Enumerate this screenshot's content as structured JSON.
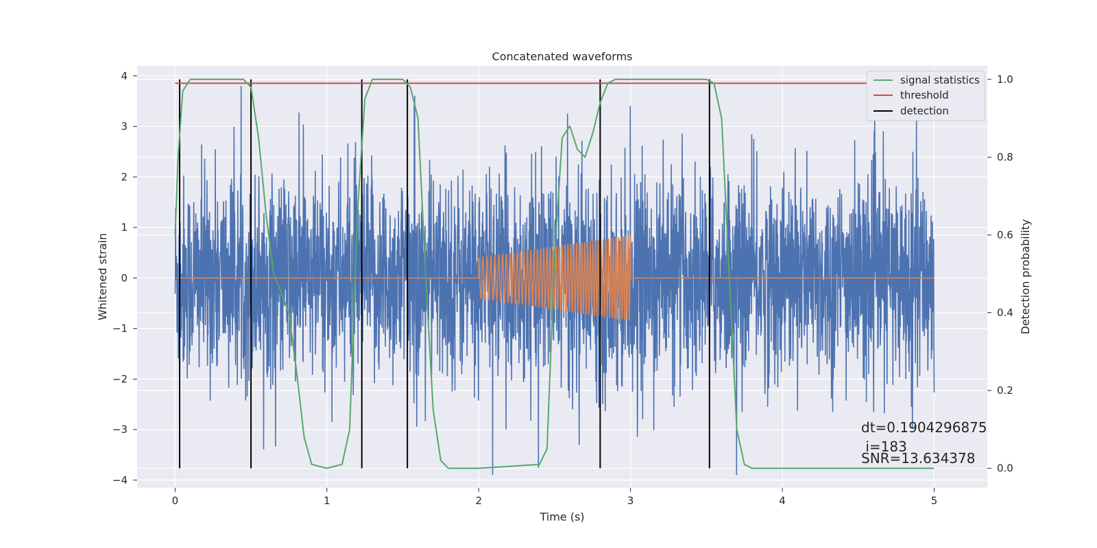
{
  "chart_data": {
    "type": "line",
    "title": "Concatenated waveforms",
    "xlabel": "Time (s)",
    "ylabel": "Whitened strain",
    "y2label": "Detection probability",
    "xlim": [
      -0.25,
      5.35
    ],
    "ylim": [
      -4.15,
      4.2
    ],
    "y2lim": [
      -0.05,
      1.035
    ],
    "x_ticks": [
      0,
      1,
      2,
      3,
      4,
      5
    ],
    "y_ticks": [
      -4,
      -3,
      -2,
      -1,
      0,
      1,
      2,
      3,
      4
    ],
    "y2_ticks": [
      0.0,
      0.2,
      0.4,
      0.6,
      0.8,
      1.0
    ],
    "grid": true,
    "legend_position": "top-right",
    "colors": {
      "noise": "#4c72b0",
      "injection": "#dd8452",
      "signal_statistics": "#55a868",
      "threshold": "#c44e52",
      "detection": "#000000",
      "plot_bg": "#eaeaf2"
    },
    "series": [
      {
        "name": "",
        "axis": "left",
        "description_values": "whitened noisy strain, approx. Gaussian noise (std ~1) over 0-5 s with sharp spikes",
        "x_range": [
          0,
          5
        ],
        "amplitude_envelope": [
          -3.9,
          3.8
        ]
      },
      {
        "name": "",
        "axis": "left",
        "x": [
          0.0,
          2.0,
          2.0,
          2.5,
          3.0,
          3.0,
          5.0
        ],
        "amplitude": [
          0.0,
          0.0,
          0.4,
          0.6,
          0.85,
          0.0,
          0.0
        ],
        "chirp": true
      },
      {
        "name": "signal statistics",
        "axis": "right",
        "x": [
          0.0,
          0.02,
          0.05,
          0.1,
          0.45,
          0.5,
          0.55,
          0.6,
          0.65,
          0.7,
          0.75,
          0.8,
          0.85,
          0.9,
          1.0,
          1.1,
          1.15,
          1.2,
          1.25,
          1.3,
          1.5,
          1.55,
          1.6,
          1.65,
          1.7,
          1.75,
          1.8,
          2.0,
          2.4,
          2.45,
          2.5,
          2.55,
          2.6,
          2.65,
          2.7,
          2.75,
          2.8,
          2.85,
          2.9,
          3.0,
          3.5,
          3.55,
          3.6,
          3.65,
          3.7,
          3.75,
          3.8,
          4.0,
          4.5,
          5.0
        ],
        "y": [
          0.6,
          0.8,
          0.97,
          1.0,
          1.0,
          0.98,
          0.85,
          0.65,
          0.5,
          0.45,
          0.4,
          0.25,
          0.08,
          0.01,
          0.0,
          0.01,
          0.1,
          0.65,
          0.95,
          1.0,
          1.0,
          0.98,
          0.9,
          0.5,
          0.15,
          0.02,
          0.0,
          0.0,
          0.01,
          0.05,
          0.55,
          0.85,
          0.88,
          0.82,
          0.8,
          0.86,
          0.94,
          0.99,
          1.0,
          1.0,
          1.0,
          0.99,
          0.9,
          0.5,
          0.1,
          0.01,
          0.0,
          0.0,
          0.0,
          0.0
        ]
      },
      {
        "name": "threshold",
        "axis": "right",
        "x": [
          0,
          5
        ],
        "y": [
          0.99,
          0.99
        ]
      }
    ],
    "detections": {
      "name": "detection",
      "x": [
        0.03,
        0.5,
        1.23,
        1.53,
        2.8,
        3.52
      ],
      "y_range_right": [
        0.0,
        1.0
      ]
    },
    "legend": [
      "signal statistics",
      "threshold",
      "detection"
    ],
    "annotations": [
      "dt=0.1904296875",
      " i=183",
      "SNR=13.634378"
    ]
  }
}
